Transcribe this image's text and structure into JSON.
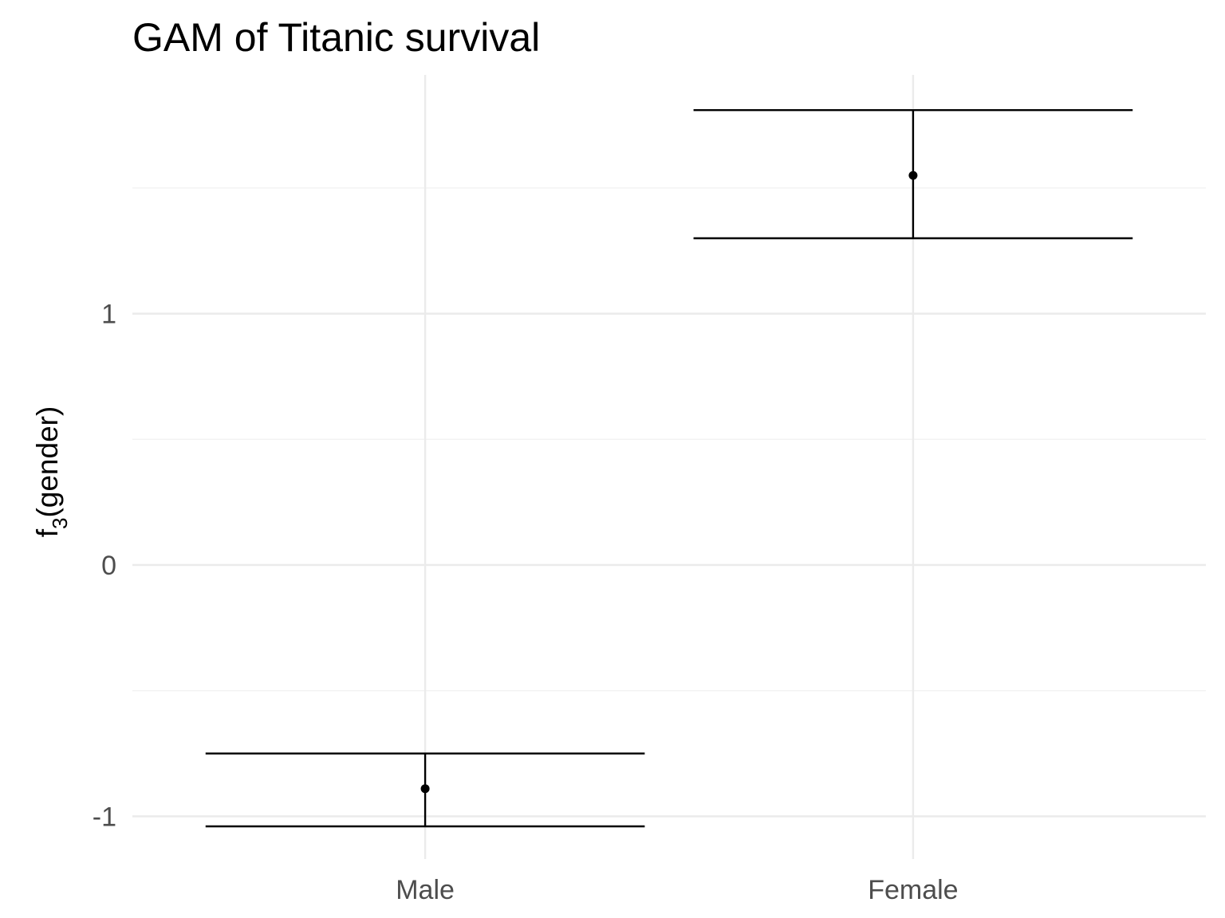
{
  "chart_data": {
    "type": "errorbar",
    "title": "GAM of Titanic survival",
    "xlabel": "",
    "ylabel": {
      "text_before_sub": "f",
      "subscript": "3",
      "text_after_sub": "(gender)"
    },
    "categories": [
      "Male",
      "Female"
    ],
    "points": [
      {
        "category": "Male",
        "y": -0.89,
        "ymin": -1.04,
        "ymax": -0.75
      },
      {
        "category": "Female",
        "y": 1.55,
        "ymin": 1.3,
        "ymax": 1.81
      }
    ],
    "ylim": [
      -1.17,
      1.95
    ],
    "yticks": [
      -1,
      0,
      1
    ],
    "ytick_labels": [
      "-1",
      "0",
      "1"
    ],
    "y_minor_ticks": [
      -0.5,
      0.5,
      1.5
    ],
    "grid": true,
    "legend": "none",
    "colors": {
      "marks": "#000000",
      "grid": "#ebebeb",
      "tick_text": "#4d4d4d"
    }
  }
}
